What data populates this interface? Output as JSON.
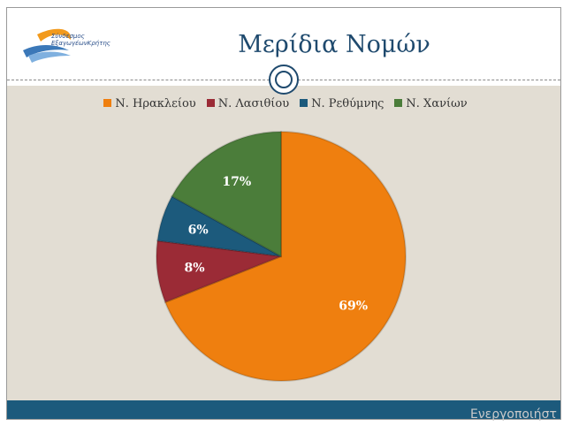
{
  "slide": {
    "title": "Μερίδια Νομών",
    "logo": {
      "line1": "Σύνδεσμος",
      "line2": "ΕξαγωγέωνΚρήτης"
    }
  },
  "watermark": "Ενεργοποιήστ",
  "chart_data": {
    "type": "pie",
    "title": "",
    "legend_position": "top",
    "categories": [
      "Ν. Ηρακλείου",
      "Ν. Λασιθίου",
      "Ν. Ρεθύμνης",
      "Ν. Χανίων"
    ],
    "values": [
      69,
      8,
      6,
      17
    ],
    "labels": [
      "69%",
      "8%",
      "6%",
      "17%"
    ],
    "colors": [
      "#ef7f0f",
      "#9b2b36",
      "#1c5a7c",
      "#4b7d3a"
    ]
  }
}
